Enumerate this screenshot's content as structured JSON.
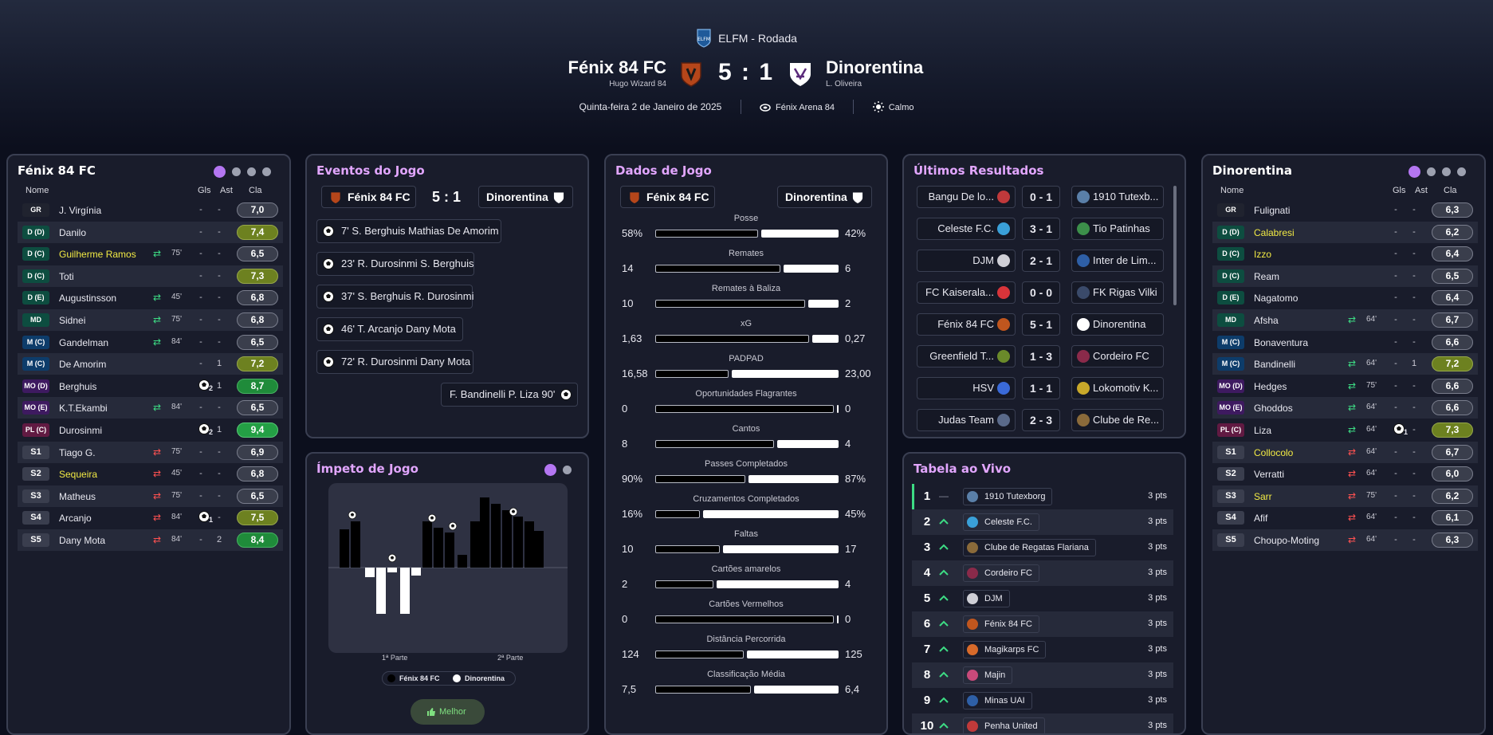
{
  "header": {
    "competition": "ELFM - Rodada",
    "home": {
      "name": "Fénix 84 FC",
      "manager": "Hugo Wizard 84"
    },
    "away": {
      "name": "Dinorentina",
      "manager": "L. Oliveira"
    },
    "score": "5 : 1",
    "date": "Quinta-feira 2 de Janeiro de 2025",
    "stadium": "Fénix Arena 84",
    "weather": "Calmo"
  },
  "home_panel": {
    "title": "Fénix 84 FC",
    "cols": {
      "name": "Nome",
      "goals": "Gls",
      "assists": "Ast",
      "rating": "Cla"
    },
    "players": [
      {
        "pos": "GR",
        "pt": "gr",
        "name": "J. Virgínia",
        "g": "-",
        "a": "-",
        "r": "7,0",
        "rc": ""
      },
      {
        "pos": "D (D)",
        "pt": "d",
        "name": "Danilo",
        "g": "-",
        "a": "-",
        "r": "7,4",
        "rc": "g1"
      },
      {
        "pos": "D (C)",
        "pt": "d",
        "name": "Guilherme Ramos",
        "y": true,
        "sub": "in",
        "min": "75'",
        "g": "-",
        "a": "-",
        "r": "6,5",
        "rc": ""
      },
      {
        "pos": "D (C)",
        "pt": "d",
        "name": "Toti",
        "g": "-",
        "a": "-",
        "r": "7,3",
        "rc": "g1"
      },
      {
        "pos": "D (E)",
        "pt": "d",
        "name": "Augustinsson",
        "sub": "in",
        "min": "45'",
        "g": "-",
        "a": "-",
        "r": "6,8",
        "rc": ""
      },
      {
        "pos": "MD",
        "pt": "d",
        "name": "Sidnei",
        "sub": "in",
        "min": "75'",
        "g": "-",
        "a": "-",
        "r": "6,8",
        "rc": ""
      },
      {
        "pos": "M (C)",
        "pt": "m",
        "name": "Gandelman",
        "sub": "in",
        "min": "84'",
        "g": "-",
        "a": "-",
        "r": "6,5",
        "rc": ""
      },
      {
        "pos": "M (C)",
        "pt": "m",
        "name": "De Amorim",
        "g": "-",
        "a": "1",
        "r": "7,2",
        "rc": "g1"
      },
      {
        "pos": "MO (D)",
        "pt": "mo",
        "name": "Berghuis",
        "goals_icon": "2",
        "g": "",
        "a": "1",
        "r": "8,7",
        "rc": "g2"
      },
      {
        "pos": "MO (E)",
        "pt": "mo",
        "name": "K.T.Ekambi",
        "sub": "in",
        "min": "84'",
        "g": "-",
        "a": "-",
        "r": "6,5",
        "rc": ""
      },
      {
        "pos": "PL (C)",
        "pt": "pl",
        "name": "Durosinmi",
        "goals_icon": "2",
        "g": "",
        "a": "1",
        "r": "9,4",
        "rc": "g3"
      },
      {
        "pos": "S1",
        "pt": "s",
        "name": "Tiago G.",
        "sub": "out",
        "min": "75'",
        "g": "-",
        "a": "-",
        "r": "6,9",
        "rc": ""
      },
      {
        "pos": "S2",
        "pt": "s",
        "name": "Sequeira",
        "y": true,
        "sub": "out",
        "min": "45'",
        "g": "-",
        "a": "-",
        "r": "6,8",
        "rc": ""
      },
      {
        "pos": "S3",
        "pt": "s",
        "name": "Matheus",
        "sub": "out",
        "min": "75'",
        "g": "-",
        "a": "-",
        "r": "6,5",
        "rc": ""
      },
      {
        "pos": "S4",
        "pt": "s",
        "name": "Arcanjo",
        "sub": "out",
        "min": "84'",
        "goals_icon": "1",
        "g": "",
        "a": "-",
        "r": "7,5",
        "rc": "g1"
      },
      {
        "pos": "S5",
        "pt": "s",
        "name": "Dany Mota",
        "sub": "out",
        "min": "84'",
        "g": "-",
        "a": "2",
        "r": "8,4",
        "rc": "g2"
      }
    ]
  },
  "away_panel": {
    "title": "Dinorentina",
    "cols": {
      "name": "Nome",
      "goals": "Gls",
      "assists": "Ast",
      "rating": "Cla"
    },
    "players": [
      {
        "pos": "GR",
        "pt": "gr",
        "name": "Fulignati",
        "g": "-",
        "a": "-",
        "r": "6,3",
        "rc": ""
      },
      {
        "pos": "D (D)",
        "pt": "d",
        "name": "Calabresi",
        "y": true,
        "g": "-",
        "a": "-",
        "r": "6,2",
        "rc": ""
      },
      {
        "pos": "D (C)",
        "pt": "d",
        "name": "Izzo",
        "y": true,
        "g": "-",
        "a": "-",
        "r": "6,4",
        "rc": ""
      },
      {
        "pos": "D (C)",
        "pt": "d",
        "name": "Ream",
        "g": "-",
        "a": "-",
        "r": "6,5",
        "rc": ""
      },
      {
        "pos": "D (E)",
        "pt": "d",
        "name": "Nagatomo",
        "g": "-",
        "a": "-",
        "r": "6,4",
        "rc": ""
      },
      {
        "pos": "MD",
        "pt": "d",
        "name": "Afsha",
        "sub": "in",
        "min": "64'",
        "g": "-",
        "a": "-",
        "r": "6,7",
        "rc": ""
      },
      {
        "pos": "M (C)",
        "pt": "m",
        "name": "Bonaventura",
        "g": "-",
        "a": "-",
        "r": "6,6",
        "rc": ""
      },
      {
        "pos": "M (C)",
        "pt": "m",
        "name": "Bandinelli",
        "sub": "in",
        "min": "64'",
        "g": "-",
        "a": "1",
        "r": "7,2",
        "rc": "g1"
      },
      {
        "pos": "MO (D)",
        "pt": "mo",
        "name": "Hedges",
        "sub": "in",
        "min": "75'",
        "g": "-",
        "a": "-",
        "r": "6,6",
        "rc": ""
      },
      {
        "pos": "MO (E)",
        "pt": "mo",
        "name": "Ghoddos",
        "sub": "in",
        "min": "64'",
        "g": "-",
        "a": "-",
        "r": "6,6",
        "rc": ""
      },
      {
        "pos": "PL (C)",
        "pt": "pl",
        "name": "Liza",
        "sub": "in",
        "min": "64'",
        "goals_icon": "1",
        "g": "",
        "a": "-",
        "r": "7,3",
        "rc": "g1"
      },
      {
        "pos": "S1",
        "pt": "s",
        "name": "Collocolo",
        "y": true,
        "sub": "out",
        "min": "64'",
        "g": "-",
        "a": "-",
        "r": "6,7",
        "rc": ""
      },
      {
        "pos": "S2",
        "pt": "s",
        "name": "Verratti",
        "sub": "out",
        "min": "64'",
        "g": "-",
        "a": "-",
        "r": "6,0",
        "rc": ""
      },
      {
        "pos": "S3",
        "pt": "s",
        "name": "Sarr",
        "y": true,
        "sub": "out",
        "min": "75'",
        "g": "-",
        "a": "-",
        "r": "6,2",
        "rc": ""
      },
      {
        "pos": "S4",
        "pt": "s",
        "name": "Afif",
        "sub": "out",
        "min": "64'",
        "g": "-",
        "a": "-",
        "r": "6,1",
        "rc": ""
      },
      {
        "pos": "S5",
        "pt": "s",
        "name": "Choupo-Moting",
        "sub": "out",
        "min": "64'",
        "g": "-",
        "a": "-",
        "r": "6,3",
        "rc": ""
      }
    ]
  },
  "events": {
    "title": "Eventos do Jogo",
    "home": "Fénix 84 FC",
    "score": "5 : 1",
    "away": "Dinorentina",
    "list": [
      {
        "side": "home",
        "text": "7'  S. Berghuis  Mathias De Amorim"
      },
      {
        "side": "home",
        "text": "23'  R. Durosinmi  S. Berghuis"
      },
      {
        "side": "home",
        "text": "37'  S. Berghuis  R. Durosinmi"
      },
      {
        "side": "home",
        "text": "46'  T. Arcanjo  Dany Mota"
      },
      {
        "side": "home",
        "text": "72'  R. Durosinmi  Dany Mota"
      },
      {
        "side": "away",
        "text": "F. Bandinelli  P. Liza  90'"
      }
    ]
  },
  "momentum": {
    "title": "Ímpeto de Jogo",
    "x_labels": [
      "1ª Parte",
      "2ª Parte"
    ],
    "legend": [
      "Fénix 84 FC",
      "Dinorentina"
    ],
    "button": "Melhor"
  },
  "stats": {
    "title": "Dados de Jogo",
    "home": "Fénix 84 FC",
    "away": "Dinorentina",
    "rows": [
      {
        "label": "Posse",
        "h": "58%",
        "a": "42%",
        "hv": 58,
        "av": 42
      },
      {
        "label": "Remates",
        "h": "14",
        "a": "6",
        "hv": 14,
        "av": 6
      },
      {
        "label": "Remates à Baliza",
        "h": "10",
        "a": "2",
        "hv": 10,
        "av": 2
      },
      {
        "label": "xG",
        "h": "1,63",
        "a": "0,27",
        "hv": 1.63,
        "av": 0.27
      },
      {
        "label": "PADPAD",
        "h": "16,58",
        "a": "23,00",
        "hv": 16.58,
        "av": 23.0
      },
      {
        "label": "Oportunidades Flagrantes",
        "h": "0",
        "a": "0",
        "hv": 0,
        "av": 0
      },
      {
        "label": "Cantos",
        "h": "8",
        "a": "4",
        "hv": 8,
        "av": 4
      },
      {
        "label": "Passes Completados",
        "h": "90%",
        "a": "87%",
        "hv": 90,
        "av": 87
      },
      {
        "label": "Cruzamentos Completados",
        "h": "16%",
        "a": "45%",
        "hv": 16,
        "av": 45
      },
      {
        "label": "Faltas",
        "h": "10",
        "a": "17",
        "hv": 10,
        "av": 17
      },
      {
        "label": "Cartões amarelos",
        "h": "2",
        "a": "4",
        "hv": 2,
        "av": 4
      },
      {
        "label": "Cartões Vermelhos",
        "h": "0",
        "a": "0",
        "hv": 0,
        "av": 0
      },
      {
        "label": "Distância Percorrida",
        "h": "124",
        "a": "125",
        "hv": 124,
        "av": 125
      },
      {
        "label": "Classificação Média",
        "h": "7,5",
        "a": "6,4",
        "hv": 7.5,
        "av": 6.4
      }
    ]
  },
  "results": {
    "title": "Últimos Resultados",
    "rows": [
      {
        "home": "Bangu De lo...",
        "score": "0 - 1",
        "away": "1910 Tutexb...",
        "hc": "#c0393b",
        "ac": "#5a7fa8"
      },
      {
        "home": "Celeste F.C.",
        "score": "3 - 1",
        "away": "Tio Patinhas",
        "hc": "#3aa0d8",
        "ac": "#3c8f4a"
      },
      {
        "home": "DJM",
        "score": "2 - 1",
        "away": "Inter de Lim...",
        "hc": "#cfcfd6",
        "ac": "#2e5fa6"
      },
      {
        "home": "FC Kaiserala...",
        "score": "0 - 0",
        "away": "FK Rigas Vilki",
        "hc": "#d8343a",
        "ac": "#3a4a6a"
      },
      {
        "home": "Fénix 84 FC",
        "score": "5 - 1",
        "away": "Dinorentina",
        "hc": "#c0561e",
        "ac": "#ffffff"
      },
      {
        "home": "Greenfield T...",
        "score": "1 - 3",
        "away": "Cordeiro FC",
        "hc": "#6a8a2a",
        "ac": "#8a2a4a"
      },
      {
        "home": "HSV",
        "score": "1 - 1",
        "away": "Lokomotiv K...",
        "hc": "#3a6ad8",
        "ac": "#c8a82a"
      },
      {
        "home": "Judas Team",
        "score": "2 - 3",
        "away": "Clube de Re...",
        "hc": "#5a6a8a",
        "ac": "#8a6a3a"
      }
    ]
  },
  "table": {
    "title": "Tabela ao Vivo",
    "rows": [
      {
        "pos": "1",
        "arrow": "—",
        "team": "1910 Tutexborg",
        "pts": "3 pts",
        "c": "#5a7fa8"
      },
      {
        "pos": "2",
        "arrow": "^",
        "team": "Celeste F.C.",
        "pts": "3 pts",
        "c": "#3aa0d8"
      },
      {
        "pos": "3",
        "arrow": "^",
        "team": "Clube de Regatas Flariana",
        "pts": "3 pts",
        "c": "#8a6a3a"
      },
      {
        "pos": "4",
        "arrow": "^",
        "team": "Cordeiro FC",
        "pts": "3 pts",
        "c": "#8a2a4a"
      },
      {
        "pos": "5",
        "arrow": "^",
        "team": "DJM",
        "pts": "3 pts",
        "c": "#cfcfd6"
      },
      {
        "pos": "6",
        "arrow": "^",
        "team": "Fénix 84 FC",
        "pts": "3 pts",
        "c": "#c0561e"
      },
      {
        "pos": "7",
        "arrow": "^",
        "team": "Magikarps FC",
        "pts": "3 pts",
        "c": "#d86a2a"
      },
      {
        "pos": "8",
        "arrow": "^",
        "team": "Majin",
        "pts": "3 pts",
        "c": "#c84a7a"
      },
      {
        "pos": "9",
        "arrow": "^",
        "team": "Minas UAI",
        "pts": "3 pts",
        "c": "#2e5fa6"
      },
      {
        "pos": "10",
        "arrow": "^",
        "team": "Penha United",
        "pts": "3 pts",
        "c": "#c03a3a"
      }
    ]
  }
}
